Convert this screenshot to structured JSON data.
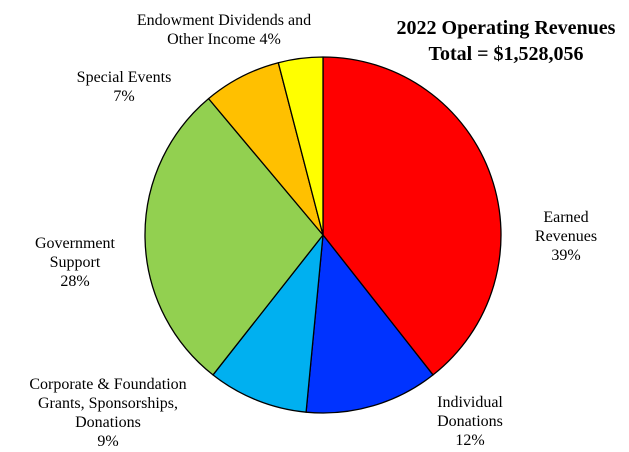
{
  "chart_data": {
    "type": "pie",
    "title": "2022 Operating Revenues",
    "subtitle": "Total = $1,528,056",
    "slices": [
      {
        "category": "Earned Revenues",
        "label_lines": [
          "Earned",
          "Revenues",
          "39%"
        ],
        "value": 39,
        "color": "#ff0000"
      },
      {
        "category": "Individual Donations",
        "label_lines": [
          "Individual",
          "Donations",
          "12%"
        ],
        "value": 12,
        "color": "#0033ff"
      },
      {
        "category": "Corporate & Foundation Grants, Sponsorships, Donations",
        "label_lines": [
          "Corporate & Foundation",
          "Grants, Sponsorships,",
          "Donations",
          "9%"
        ],
        "value": 9,
        "color": "#00b0f0"
      },
      {
        "category": "Government Support",
        "label_lines": [
          "Government",
          "Support",
          "28%"
        ],
        "value": 28,
        "color": "#92d050"
      },
      {
        "category": "Special Events",
        "label_lines": [
          "Special Events",
          "7%"
        ],
        "value": 7,
        "color": "#ffc000"
      },
      {
        "category": "Endowment Dividends and Other Income",
        "label_lines": [
          "Endowment Dividends and",
          "Other Income 4%"
        ],
        "value": 4,
        "color": "#ffff00"
      }
    ]
  }
}
